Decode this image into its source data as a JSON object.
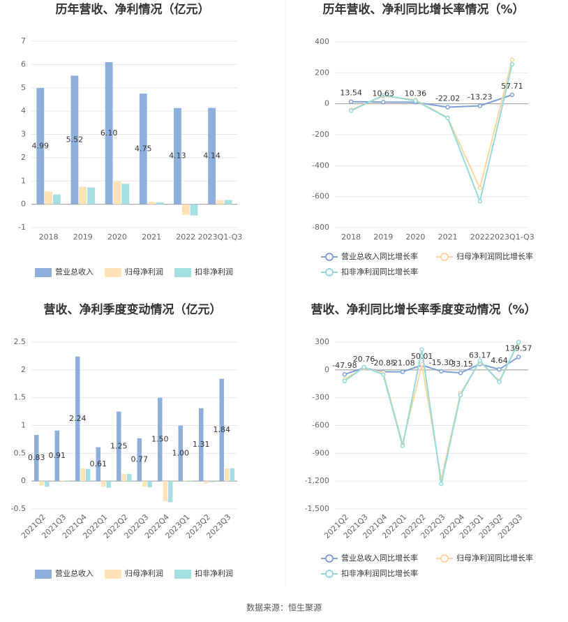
{
  "chart_data": [
    {
      "type": "bar",
      "title": "历年营收、净利情况（亿元）",
      "categories": [
        "2018",
        "2019",
        "2020",
        "2021",
        "2022",
        "2023Q1-Q3"
      ],
      "series": [
        {
          "name": "营业总收入",
          "color": "#8eaedc",
          "values": [
            4.99,
            5.52,
            6.1,
            4.75,
            4.13,
            4.14
          ],
          "value_labels": [
            "4.99",
            "5.52",
            "6.10",
            "4.75",
            "4.13",
            "4.14"
          ]
        },
        {
          "name": "归母净利润",
          "color": "#fde3b6",
          "values": [
            0.55,
            0.75,
            0.98,
            0.1,
            -0.45,
            0.18
          ]
        },
        {
          "name": "扣非净利润",
          "color": "#a6dfe2",
          "values": [
            0.42,
            0.72,
            0.88,
            0.08,
            -0.48,
            0.18
          ]
        }
      ],
      "ylim": [
        -1,
        7
      ],
      "yticks": [
        -1,
        0,
        1,
        2,
        3,
        4,
        5,
        6,
        7
      ],
      "grid": true
    },
    {
      "type": "line",
      "title": "历年营收、净利同比增长率情况（%）",
      "categories": [
        "2018",
        "2019",
        "2020",
        "2021",
        "2022",
        "2023Q1-Q3"
      ],
      "series": [
        {
          "name": "营业总收入同比增长率",
          "color": "#7d9fd8",
          "values": [
            13.54,
            10.63,
            10.36,
            -22.02,
            -13.23,
            57.71
          ]
        },
        {
          "name": "归母净利润同比增长率",
          "color": "#fcd79c",
          "values": [
            -40,
            50,
            25,
            -90,
            -545,
            285
          ]
        },
        {
          "name": "扣非净利润同比增长率",
          "color": "#94dadd",
          "values": [
            -45,
            55,
            20,
            -92,
            -630,
            255
          ]
        }
      ],
      "ylim": [
        -800,
        400
      ],
      "yticks": [
        -800,
        -600,
        -400,
        -200,
        0,
        200,
        400
      ],
      "grid": true
    },
    {
      "type": "bar",
      "title": "营收、净利季度变动情况（亿元）",
      "categories": [
        "2021Q2",
        "2021Q3",
        "2021Q4",
        "2022Q1",
        "2022Q2",
        "2022Q3",
        "2022Q4",
        "2023Q1",
        "2023Q2",
        "2023Q3"
      ],
      "series": [
        {
          "name": "营业总收入",
          "color": "#8eaedc",
          "values": [
            0.83,
            0.91,
            2.24,
            0.61,
            1.25,
            0.77,
            1.5,
            1.0,
            1.31,
            1.84
          ],
          "value_labels": [
            "0.83",
            "0.91",
            "2.24",
            "0.61",
            "1.25",
            "0.77",
            "1.50",
            "1.00",
            "1.31",
            "1.84"
          ]
        },
        {
          "name": "归母净利润",
          "color": "#fde3b6",
          "values": [
            -0.08,
            0.01,
            0.23,
            -0.1,
            0.13,
            -0.1,
            -0.36,
            0.01,
            -0.04,
            0.23
          ]
        },
        {
          "name": "扣非净利润",
          "color": "#a6dfe2",
          "values": [
            -0.1,
            0.01,
            0.22,
            -0.12,
            0.13,
            -0.11,
            -0.38,
            0.01,
            -0.02,
            0.23
          ]
        }
      ],
      "ylim": [
        -0.5,
        2.5
      ],
      "yticks": [
        -0.5,
        0,
        0.5,
        1,
        1.5,
        2,
        2.5
      ],
      "grid": true
    },
    {
      "type": "line",
      "title": "营收、净利同比增长率季度变动情况（%）",
      "categories": [
        "2021Q2",
        "2021Q3",
        "2021Q4",
        "2022Q1",
        "2022Q2",
        "2022Q3",
        "2022Q4",
        "2023Q1",
        "2023Q2",
        "2023Q3"
      ],
      "series": [
        {
          "name": "营业总收入同比增长率",
          "color": "#7d9fd8",
          "values": [
            -47.98,
            20.76,
            -20.85,
            -21.08,
            50.01,
            -15.3,
            -33.15,
            63.17,
            4.64,
            139.57
          ],
          "value_labels": [
            "-47.98",
            "20.76",
            "-20.85",
            "-21.08",
            "50.01",
            "-15.30",
            "-33.15",
            "63.17",
            "4.64",
            "139.57"
          ]
        },
        {
          "name": "归母净利润同比增长率",
          "color": "#fcd79c",
          "values": [
            -100,
            20,
            -30,
            -800,
            60,
            -1180,
            -250,
            90,
            -120,
            290
          ]
        },
        {
          "name": "扣非净利润同比增长率",
          "color": "#94dadd",
          "values": [
            -120,
            30,
            -50,
            -820,
            220,
            -1230,
            -270,
            100,
            -130,
            300
          ]
        }
      ],
      "ylim": [
        -1500,
        300
      ],
      "yticks": [
        {
          "value": -1500,
          "label": "-1,500"
        },
        {
          "value": -1200,
          "label": "-1,200"
        },
        -900,
        -600,
        -300,
        0,
        300
      ],
      "grid": true
    }
  ],
  "source": "数据来源：恒生聚源"
}
